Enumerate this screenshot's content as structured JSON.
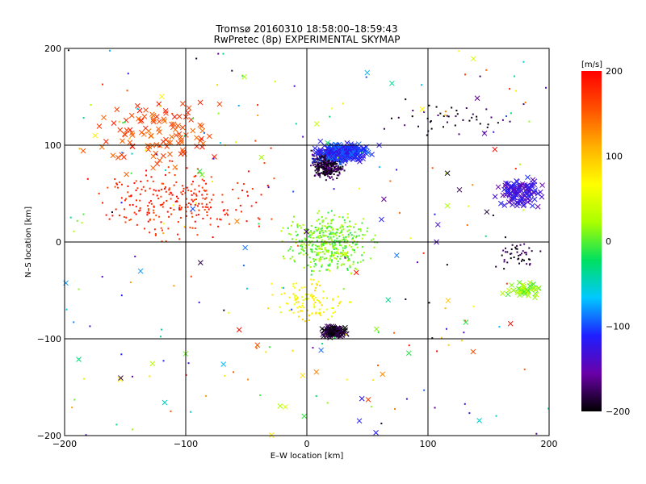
{
  "chart_data": {
    "type": "scatter",
    "title": "Tromsø 20160310 18:58:00–18:59:43",
    "subtitle": "RwPretec (8p) EXPERIMENTAL SKYMAP",
    "xlabel": "E–W location [km]",
    "ylabel": "N–S location [km]",
    "xlim": [
      -200,
      200
    ],
    "ylim": [
      -200,
      200
    ],
    "x_ticks": [
      "−200",
      "−100",
      "0",
      "100",
      "200"
    ],
    "y_ticks": [
      "−200",
      "−100",
      "0",
      "100",
      "200"
    ],
    "grid": true,
    "grid_lines": [
      -100,
      0,
      100
    ],
    "marker_types": [
      "dot",
      "cross"
    ],
    "colorbar": {
      "label": "[m/s]",
      "range": [
        -200,
        200
      ],
      "ticks": [
        "200",
        "100",
        "0",
        "−100",
        "−200"
      ],
      "colormap": "rainbow",
      "stops": [
        "#000000",
        "#6a00a8",
        "#1e1eff",
        "#00c8ff",
        "#00e060",
        "#aaff00",
        "#ffff00",
        "#ffb000",
        "#ff5000",
        "#ff0000"
      ]
    },
    "clusters": [
      {
        "velocity_m_s": 180,
        "x_range_km": [
          -200,
          -5
        ],
        "y_range_km": [
          -10,
          95
        ],
        "marker": "dot",
        "density": "high"
      },
      {
        "velocity_m_s": 165,
        "x_range_km": [
          -180,
          -60
        ],
        "y_range_km": [
          60,
          160
        ],
        "marker": "cross",
        "density": "medium"
      },
      {
        "velocity_m_s": -185,
        "x_range_km": [
          0,
          35
        ],
        "y_range_km": [
          60,
          100
        ],
        "marker": "dot",
        "density": "very high"
      },
      {
        "velocity_m_s": -110,
        "x_range_km": [
          0,
          60
        ],
        "y_range_km": [
          80,
          105
        ],
        "marker": "cross",
        "density": "high"
      },
      {
        "velocity_m_s": 10,
        "x_range_km": [
          -30,
          65
        ],
        "y_range_km": [
          -45,
          40
        ],
        "marker": "dot",
        "density": "very high"
      },
      {
        "velocity_m_s": 70,
        "x_range_km": [
          -40,
          40
        ],
        "y_range_km": [
          -90,
          -30
        ],
        "marker": "dot",
        "density": "medium"
      },
      {
        "velocity_m_s": -190,
        "x_range_km": [
          10,
          35
        ],
        "y_range_km": [
          -100,
          -85
        ],
        "marker": "cross",
        "density": "medium"
      },
      {
        "velocity_m_s": -190,
        "x_range_km": [
          50,
          190
        ],
        "y_range_km": [
          100,
          150
        ],
        "marker": "dot",
        "density": "low"
      },
      {
        "velocity_m_s": -130,
        "x_range_km": [
          150,
          200
        ],
        "y_range_km": [
          30,
          70
        ],
        "marker": "cross",
        "density": "medium"
      },
      {
        "velocity_m_s": 15,
        "x_range_km": [
          160,
          200
        ],
        "y_range_km": [
          -60,
          -40
        ],
        "marker": "cross",
        "density": "low"
      },
      {
        "velocity_m_s": -180,
        "x_range_km": [
          150,
          200
        ],
        "y_range_km": [
          -35,
          10
        ],
        "marker": "dot",
        "density": "low"
      }
    ]
  }
}
